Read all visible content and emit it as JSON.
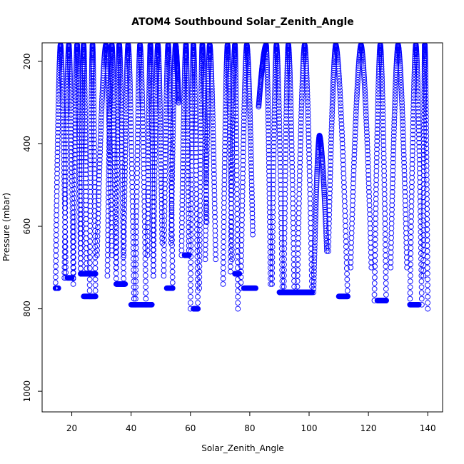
{
  "chart_data": {
    "type": "scatter",
    "title": "ATOM4 Southbound Solar_Zenith_Angle",
    "xlabel": "Solar_Zenith_Angle",
    "ylabel": "Pressure (mbar)",
    "xlim": [
      10,
      145
    ],
    "ylim": [
      1050,
      155
    ],
    "y_reversed": true,
    "x_ticks": [
      20,
      40,
      60,
      80,
      100,
      120,
      140
    ],
    "y_ticks": [
      200,
      400,
      600,
      800,
      1000
    ],
    "x_tick_labels": [
      "20",
      "40",
      "60",
      "80",
      "100",
      "120",
      "140"
    ],
    "y_tick_labels": [
      "200",
      "400",
      "600",
      "800",
      "1000"
    ],
    "marker": "open-circle",
    "color": "#0000ff",
    "grid": false,
    "series": [
      {
        "profiles": [
          [
            14.5,
            750,
            16.2,
            160,
            18.0,
            725
          ],
          [
            17.5,
            725,
            19.0,
            160,
            20.5,
            725
          ],
          [
            20.5,
            740,
            21.8,
            160,
            23.0,
            715
          ],
          [
            23.0,
            715,
            24.0,
            160,
            25.0,
            715
          ],
          [
            26.0,
            770,
            27.0,
            160,
            28.0,
            770
          ],
          [
            28.5,
            670,
            31.5,
            160,
            33.5,
            670
          ],
          [
            32.0,
            720,
            33.5,
            160,
            35.0,
            740
          ],
          [
            35.0,
            700,
            36.0,
            160,
            37.5,
            740
          ],
          [
            37.5,
            670,
            39.0,
            160,
            41.0,
            790
          ],
          [
            41.5,
            790,
            43.0,
            160,
            45.0,
            790
          ],
          [
            45.5,
            670,
            46.5,
            160,
            47.5,
            720
          ],
          [
            47.5,
            720,
            49.0,
            160,
            50.5,
            640
          ],
          [
            51.0,
            720,
            52.5,
            160,
            54.0,
            750
          ],
          [
            53.5,
            640,
            55.0,
            160,
            56.0,
            300
          ],
          [
            57.0,
            670,
            58.5,
            160,
            59.5,
            670
          ],
          [
            60.0,
            800,
            61.0,
            160,
            62.5,
            800
          ],
          [
            63.0,
            750,
            64.0,
            160,
            65.5,
            590
          ],
          [
            65.0,
            680,
            66.5,
            160,
            68.5,
            680
          ],
          [
            71.0,
            740,
            72.5,
            160,
            74.0,
            680
          ],
          [
            73.5,
            710,
            75.0,
            160,
            76.0,
            800
          ],
          [
            77.0,
            750,
            79.0,
            160,
            81.0,
            620
          ],
          [
            83.0,
            310,
            85.5,
            160,
            87.0,
            740
          ],
          [
            87.5,
            740,
            89.0,
            160,
            91.0,
            760
          ],
          [
            91.5,
            760,
            93.0,
            160,
            95.0,
            760
          ],
          [
            96.0,
            760,
            98.5,
            160,
            101.0,
            760
          ],
          [
            101.5,
            760,
            103.5,
            380,
            106.0,
            660
          ],
          [
            106.5,
            660,
            109.0,
            160,
            113.0,
            770
          ],
          [
            114.0,
            700,
            117.5,
            160,
            121.0,
            700
          ],
          [
            122.0,
            780,
            124.0,
            160,
            126.0,
            780
          ],
          [
            127.5,
            700,
            130.0,
            160,
            133.0,
            700
          ],
          [
            134.0,
            790,
            136.0,
            160,
            138.0,
            790
          ],
          [
            138.5,
            720,
            139.0,
            160,
            140.0,
            800
          ]
        ],
        "flat_segments": [
          [
            14.5,
            15.5,
            750
          ],
          [
            18.5,
            20.0,
            725
          ],
          [
            23.0,
            28.0,
            715
          ],
          [
            24.0,
            28.0,
            770
          ],
          [
            35.0,
            38.0,
            740
          ],
          [
            40.0,
            47.0,
            790
          ],
          [
            52.0,
            54.0,
            750
          ],
          [
            58.0,
            59.5,
            670
          ],
          [
            61.0,
            62.5,
            800
          ],
          [
            75.0,
            76.5,
            715
          ],
          [
            78.0,
            82.0,
            750
          ],
          [
            90.0,
            101.0,
            760
          ],
          [
            110.0,
            113.0,
            770
          ],
          [
            123.0,
            126.0,
            780
          ],
          [
            134.0,
            137.0,
            790
          ]
        ]
      }
    ]
  }
}
